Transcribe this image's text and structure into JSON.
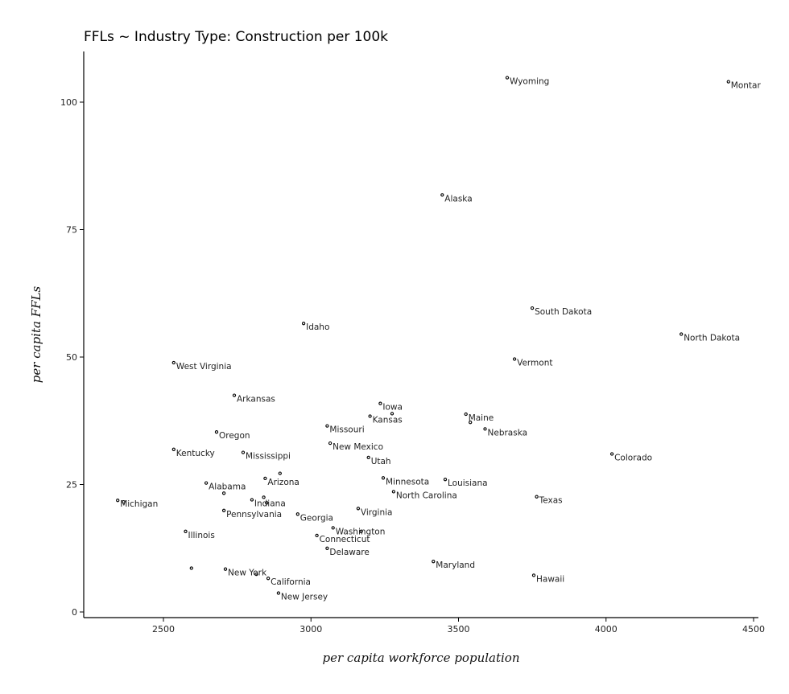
{
  "chart_data": {
    "type": "scatter",
    "title": "FFLs ~ Industry Type: Construction per 100k",
    "xlabel": "per capita workforce population",
    "ylabel": "per capita FFLs",
    "xlim": [
      2240,
      4520
    ],
    "ylim": [
      -1,
      110
    ],
    "xticks": [
      2500,
      3000,
      3500,
      4000,
      4500
    ],
    "yticks": [
      0,
      25,
      50,
      75,
      100
    ],
    "grid": false,
    "legend": "none",
    "points": [
      {
        "label": "Wyoming",
        "x": 3665,
        "y": 104.8
      },
      {
        "label": "Montar",
        "x": 4415,
        "y": 104.0
      },
      {
        "label": "Alaska",
        "x": 3445,
        "y": 81.8
      },
      {
        "label": "South Dakota",
        "x": 3750,
        "y": 59.6
      },
      {
        "label": "North Dakota",
        "x": 4255,
        "y": 54.5
      },
      {
        "label": "Idaho",
        "x": 2975,
        "y": 56.6
      },
      {
        "label": "Vermont",
        "x": 3690,
        "y": 49.6
      },
      {
        "label": "West Virginia",
        "x": 2535,
        "y": 48.9
      },
      {
        "label": "Arkansas",
        "x": 2740,
        "y": 42.5
      },
      {
        "label": "Iowa",
        "x": 3235,
        "y": 40.9
      },
      {
        "label": "Kansas",
        "x": 3200,
        "y": 38.4
      },
      {
        "label": "",
        "x": 3275,
        "y": 38.9
      },
      {
        "label": "Maine",
        "x": 3525,
        "y": 38.8
      },
      {
        "label": "",
        "x": 3540,
        "y": 37.2
      },
      {
        "label": "Missouri",
        "x": 3055,
        "y": 36.5
      },
      {
        "label": "Nebraska",
        "x": 3590,
        "y": 35.9
      },
      {
        "label": "Oregon",
        "x": 2680,
        "y": 35.3
      },
      {
        "label": "New Mexico",
        "x": 3065,
        "y": 33.1
      },
      {
        "label": "Kentucky",
        "x": 2535,
        "y": 31.9
      },
      {
        "label": "Mississippi",
        "x": 2770,
        "y": 31.3
      },
      {
        "label": "Colorado",
        "x": 4020,
        "y": 31.0
      },
      {
        "label": "Utah",
        "x": 3195,
        "y": 30.3
      },
      {
        "label": "",
        "x": 2895,
        "y": 27.2
      },
      {
        "label": "Arizona",
        "x": 2845,
        "y": 26.2
      },
      {
        "label": "Minnesota",
        "x": 3245,
        "y": 26.3
      },
      {
        "label": "Louisiana",
        "x": 3455,
        "y": 26.0
      },
      {
        "label": "Alabama",
        "x": 2645,
        "y": 25.3
      },
      {
        "label": "North Carolina",
        "x": 3280,
        "y": 23.6
      },
      {
        "label": "",
        "x": 2705,
        "y": 23.3
      },
      {
        "label": "Texas",
        "x": 3765,
        "y": 22.6
      },
      {
        "label": "",
        "x": 2840,
        "y": 22.5
      },
      {
        "label": "Michigan",
        "x": 2345,
        "y": 21.9
      },
      {
        "label": "",
        "x": 2365,
        "y": 21.6
      },
      {
        "label": "Indiana",
        "x": 2800,
        "y": 22.0
      },
      {
        "label": "",
        "x": 2850,
        "y": 21.4
      },
      {
        "label": "Virginia",
        "x": 3160,
        "y": 20.3
      },
      {
        "label": "Pennsylvania",
        "x": 2705,
        "y": 19.9
      },
      {
        "label": "Georgia",
        "x": 2955,
        "y": 19.2
      },
      {
        "label": "Washington",
        "x": 3075,
        "y": 16.5
      },
      {
        "label": "",
        "x": 3170,
        "y": 15.8
      },
      {
        "label": "Illinois",
        "x": 2575,
        "y": 15.8
      },
      {
        "label": "Connecticut",
        "x": 3020,
        "y": 15.0
      },
      {
        "label": "Delaware",
        "x": 3055,
        "y": 12.5
      },
      {
        "label": "Maryland",
        "x": 3415,
        "y": 9.9
      },
      {
        "label": "",
        "x": 2595,
        "y": 8.6
      },
      {
        "label": "New York",
        "x": 2710,
        "y": 8.4
      },
      {
        "label": "",
        "x": 2815,
        "y": 7.4
      },
      {
        "label": "Hawaii",
        "x": 3755,
        "y": 7.2
      },
      {
        "label": "California",
        "x": 2855,
        "y": 6.6
      },
      {
        "label": "New Jersey",
        "x": 2890,
        "y": 3.7
      }
    ]
  }
}
